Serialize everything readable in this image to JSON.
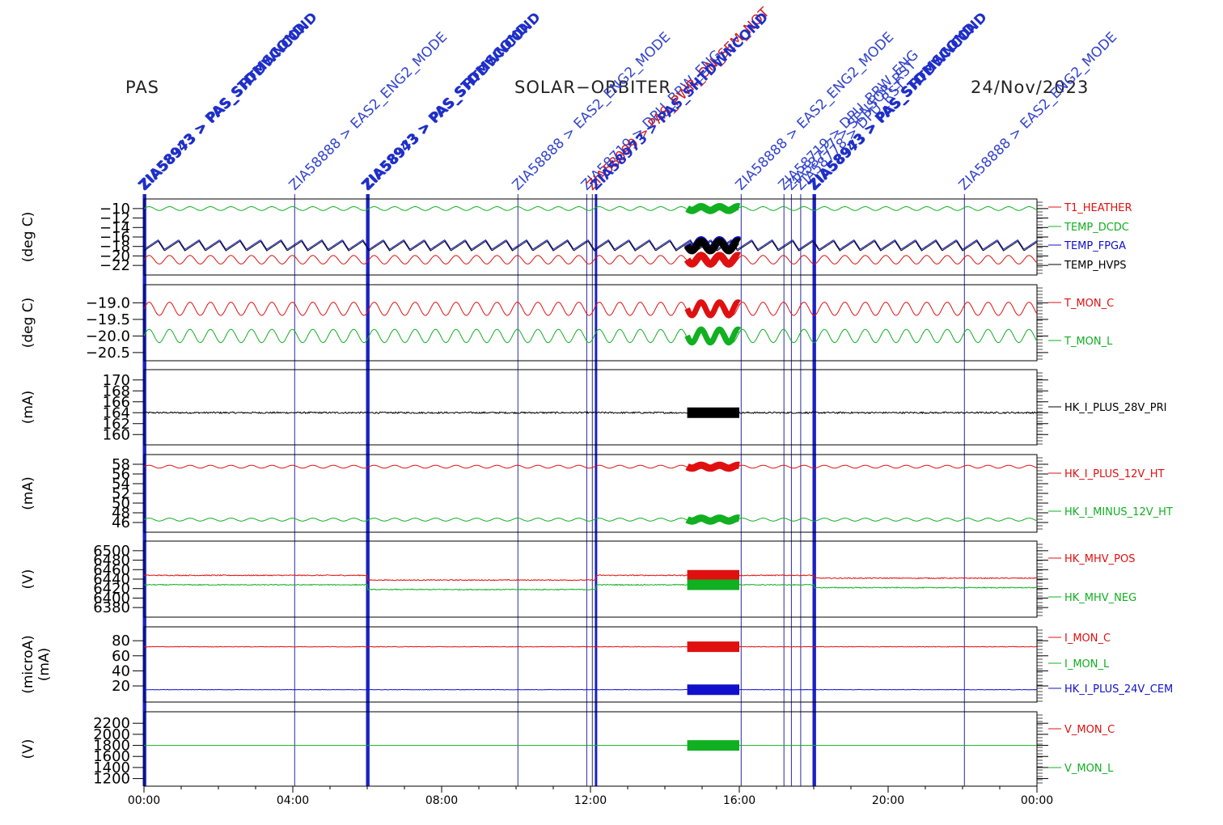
{
  "header": {
    "instrument": "PAS",
    "mission": "SOLAR−ORBITER",
    "date": "24/Nov/2023"
  },
  "colors": {
    "red": "#e01010",
    "green": "#10b020",
    "blue": "#1010cc",
    "black": "#000000",
    "event_line": "#2222aa",
    "event_text": "#3344cc"
  },
  "chart_data": {
    "type": "line",
    "x_ticks": [
      "00:00",
      "04:00",
      "08:00",
      "12:00",
      "16:00",
      "20:00",
      "00:00"
    ],
    "x_range_hours": [
      0,
      24
    ],
    "events": [
      {
        "t": 0.0,
        "label": "ZIA58943 > PAS_STDMSCOND",
        "bold": true,
        "color": "#1f2fc8"
      },
      {
        "t": 0.03,
        "label": "ZIA58973 > PAS_SHTDWNCOND",
        "bold": true,
        "color": "#1f2fc8"
      },
      {
        "t": 4.05,
        "label": "ZIA58888 > EAS2_ENG2_MODE",
        "bold": false,
        "color": "#3344cc"
      },
      {
        "t": 6.0,
        "label": "ZIA58943 > PAS_STDMSCOND",
        "bold": true,
        "color": "#1f2fc8"
      },
      {
        "t": 6.03,
        "label": "ZIA58973 > PAS_SHTDWNCOND",
        "bold": true,
        "color": "#1f2fc8"
      },
      {
        "t": 10.05,
        "label": "ZIA58888 > EAS2_ENG2_MODE",
        "bold": false,
        "color": "#3344cc"
      },
      {
        "t": 11.9,
        "label": "ZIA58719 > DPU_BRW_ENG",
        "bold": false,
        "color": "#3344cc"
      },
      {
        "t": 12.05,
        "label": "ZIA58099 > PAS_PWR_ON_SEM_NOT",
        "bold": false,
        "color": "#d02020"
      },
      {
        "t": 12.15,
        "label": "ZIA58973 > PAS_SHTDWNCOND",
        "bold": true,
        "color": "#1f2fc8"
      },
      {
        "t": 16.05,
        "label": "ZIA58888 > EAS2_ENG2_MODE",
        "bold": false,
        "color": "#3344cc"
      },
      {
        "t": 17.2,
        "label": "ZIA58719 > DPU_BRW_ENG",
        "bold": false,
        "color": "#3344cc"
      },
      {
        "t": 17.4,
        "label": "ZIA58777 > SENSOR_RST",
        "bold": false,
        "color": "#3344cc"
      },
      {
        "t": 17.65,
        "label": "ZIA58778 > DPU_RST",
        "bold": false,
        "color": "#3344cc"
      },
      {
        "t": 18.0,
        "label": "ZIA58943 > PAS_STDMSCOND",
        "bold": true,
        "color": "#1f2fc8"
      },
      {
        "t": 18.03,
        "label": "ZIA58973 > PAS_SHTDWNCOND",
        "bold": true,
        "color": "#1f2fc8"
      },
      {
        "t": 22.05,
        "label": "ZIA58888 > EAS2_ENG2_MODE",
        "bold": false,
        "color": "#3344cc"
      }
    ],
    "panels": [
      {
        "ylabel": "(deg C)",
        "ylim": [
          -23,
          -9
        ],
        "ticks": [
          -10,
          -12,
          -14,
          -16,
          -18,
          -20,
          -22
        ],
        "tick_labels": [
          "−10",
          "−12",
          "−14",
          "−16",
          "−18",
          "−20",
          "−22"
        ],
        "series": [
          {
            "name": "T1_HEATHER",
            "color": "#e01010",
            "base": -20.8,
            "amp": 0.9,
            "period": 0.55,
            "kind": "sine"
          },
          {
            "name": "TEMP_DCDC",
            "color": "#10b020",
            "base": -10.0,
            "amp": 0.4,
            "period": 0.55,
            "kind": "sine"
          },
          {
            "name": "TEMP_FPGA",
            "color": "#1010cc",
            "base": -17.6,
            "amp": 1.0,
            "period": 0.55,
            "kind": "saw"
          },
          {
            "name": "TEMP_HVPS",
            "color": "#000000",
            "base": -17.9,
            "amp": 1.0,
            "period": 0.55,
            "kind": "saw"
          }
        ]
      },
      {
        "ylabel": "(deg C)",
        "ylim": [
          -20.6,
          -18.6
        ],
        "ticks": [
          -19.0,
          -19.5,
          -20.0,
          -20.5
        ],
        "tick_labels": [
          "−19.0",
          "−19.5",
          "−20.0",
          "−20.5"
        ],
        "series": [
          {
            "name": "T_MON_C",
            "color": "#e01010",
            "base": -19.18,
            "amp": 0.2,
            "period": 0.55,
            "kind": "sine"
          },
          {
            "name": "T_MON_L",
            "color": "#10b020",
            "base": -20.0,
            "amp": 0.2,
            "period": 0.55,
            "kind": "sine"
          }
        ]
      },
      {
        "ylabel": "(mA)",
        "ylim": [
          159,
          171
        ],
        "ticks": [
          160,
          162,
          164,
          166,
          168,
          170
        ],
        "tick_labels": [
          "160",
          "162",
          "164",
          "166",
          "168",
          "170"
        ],
        "series": [
          {
            "name": "HK_I_PLUS_28V_PRI",
            "color": "#000000",
            "base": 164.0,
            "amp": 0.15,
            "period": 0.2,
            "kind": "noise"
          }
        ]
      },
      {
        "ylabel": "(mA)",
        "ylim": [
          45,
          59
        ],
        "ticks": [
          46,
          48,
          50,
          52,
          54,
          56,
          58
        ],
        "tick_labels": [
          "46",
          "48",
          "50",
          "52",
          "54",
          "56",
          "58"
        ],
        "series": [
          {
            "name": "HK_I_PLUS_12V_HT",
            "color": "#e01010",
            "base": 57.5,
            "amp": 0.3,
            "period": 0.55,
            "kind": "sine"
          },
          {
            "name": "HK_I_MINUS_12V_HT",
            "color": "#10b020",
            "base": 46.6,
            "amp": 0.3,
            "period": 0.55,
            "kind": "sine"
          }
        ]
      },
      {
        "ylabel": "(V)",
        "ylim": [
          6370,
          6510
        ],
        "ticks": [
          6380,
          6400,
          6420,
          6440,
          6460,
          6480,
          6500
        ],
        "tick_labels": [
          "6380",
          "6400",
          "6420",
          "6440",
          "6460",
          "6480",
          "6500"
        ],
        "series": [
          {
            "name": "HK_MHV_POS",
            "color": "#e01010",
            "base": 6448,
            "amp": 1.0,
            "period": 0.2,
            "kind": "noise"
          },
          {
            "name": "HK_MHV_NEG",
            "color": "#10b020",
            "base": 6428,
            "amp": 1.0,
            "period": 0.2,
            "kind": "noise"
          }
        ]
      },
      {
        "ylabel": "(microA)",
        "ylabel2": "(mA)",
        "ylim": [
          5,
          92
        ],
        "ticks": [
          20,
          40,
          60,
          80
        ],
        "tick_labels": [
          "20",
          "40",
          "60",
          "80"
        ],
        "series": [
          {
            "name": "I_MON_C",
            "color": "#e01010",
            "base": 72,
            "amp": 0.4,
            "period": 0.2,
            "kind": "noise"
          },
          {
            "name": "I_MON_L",
            "color": "#10b020",
            "base": null,
            "amp": 0,
            "period": 1,
            "kind": "none"
          },
          {
            "name": "HK_I_PLUS_24V_CEM",
            "color": "#1010cc",
            "base": 15,
            "amp": 0.3,
            "period": 0.2,
            "kind": "noise"
          }
        ]
      },
      {
        "ylabel": "(V)",
        "ylim": [
          1150,
          2320
        ],
        "ticks": [
          1200,
          1400,
          1600,
          1800,
          2000,
          2200
        ],
        "tick_labels": [
          "1200",
          "1400",
          "1600",
          "1800",
          "2000",
          "2200"
        ],
        "series": [
          {
            "name": "V_MON_C",
            "color": "#e01010",
            "base": null,
            "amp": 0,
            "period": 1,
            "kind": "none"
          },
          {
            "name": "V_MON_L",
            "color": "#10b020",
            "base": 1800,
            "amp": 0,
            "period": 1,
            "kind": "flat"
          }
        ]
      }
    ],
    "dense_interval_hours": [
      14.6,
      16.0
    ]
  }
}
